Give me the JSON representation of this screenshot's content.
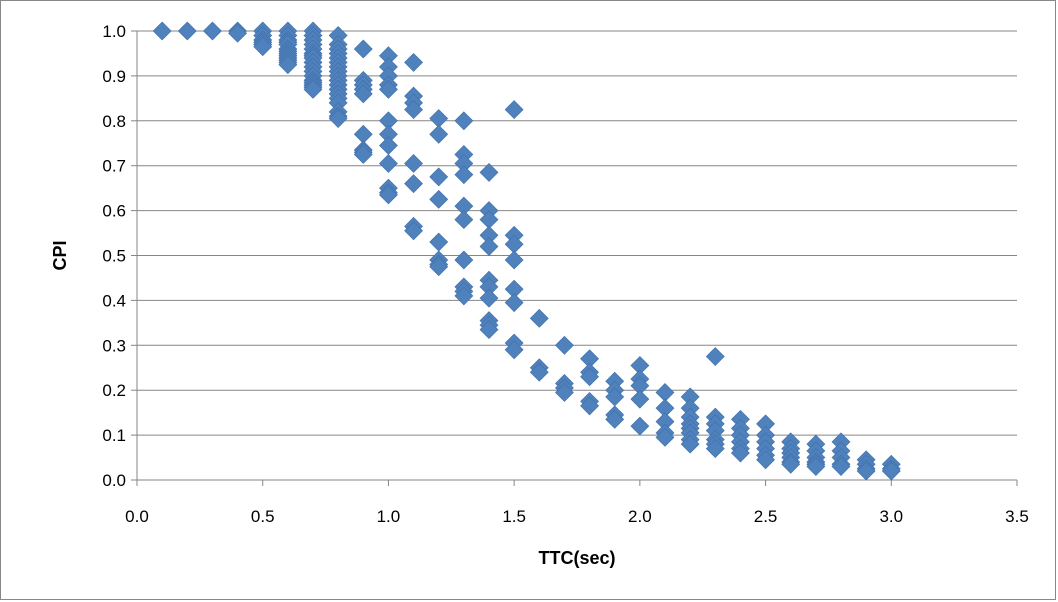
{
  "chart_data": {
    "type": "scatter",
    "title": "",
    "xlabel": "TTC(sec)",
    "ylabel": "CPI",
    "xlim": [
      0,
      3.5
    ],
    "ylim": [
      0,
      1.0
    ],
    "x_ticks": [
      "0.0",
      "0.5",
      "1.0",
      "1.5",
      "2.0",
      "2.5",
      "3.0",
      "3.5"
    ],
    "y_ticks": [
      "0.0",
      "0.1",
      "0.2",
      "0.3",
      "0.4",
      "0.5",
      "0.6",
      "0.7",
      "0.8",
      "0.9",
      "1.0"
    ],
    "grid": "horizontal",
    "legend": "none",
    "marker": "diamond",
    "colors": {
      "marker": "#4F81BD",
      "marker_edge": "#3F6FA8",
      "grid": "#868686",
      "axis": "#868686"
    },
    "series": [
      {
        "x": [
          0.1,
          0.2,
          0.3,
          0.4,
          0.4,
          0.5,
          0.5,
          0.5,
          0.5,
          0.5,
          0.5,
          0.6,
          0.6,
          0.6,
          0.6,
          0.6,
          0.6,
          0.6,
          0.6,
          0.6,
          0.6,
          0.6,
          0.6,
          0.6,
          0.7,
          0.7,
          0.7,
          0.7,
          0.7,
          0.7,
          0.7,
          0.7,
          0.7,
          0.7,
          0.7,
          0.7,
          0.7,
          0.7,
          0.7,
          0.7,
          0.7,
          0.8,
          0.8,
          0.8,
          0.8,
          0.8,
          0.8,
          0.8,
          0.8,
          0.8,
          0.8,
          0.8,
          0.8,
          0.8,
          0.8,
          0.8,
          0.8,
          0.8,
          0.8,
          0.9,
          0.9,
          0.9,
          0.9,
          0.9,
          0.9,
          0.9,
          0.9,
          0.9,
          1.0,
          1.0,
          1.0,
          1.0,
          1.0,
          1.0,
          1.0,
          1.0,
          1.0,
          1.0,
          1.0,
          1.0,
          1.1,
          1.1,
          1.1,
          1.1,
          1.1,
          1.1,
          1.1,
          1.1,
          1.2,
          1.2,
          1.2,
          1.2,
          1.2,
          1.2,
          1.2,
          1.2,
          1.3,
          1.3,
          1.3,
          1.3,
          1.3,
          1.3,
          1.3,
          1.3,
          1.3,
          1.3,
          1.4,
          1.4,
          1.4,
          1.4,
          1.4,
          1.4,
          1.4,
          1.4,
          1.4,
          1.4,
          1.4,
          1.5,
          1.5,
          1.5,
          1.5,
          1.5,
          1.5,
          1.5,
          1.5,
          1.6,
          1.6,
          1.6,
          1.7,
          1.7,
          1.7,
          1.7,
          1.8,
          1.8,
          1.8,
          1.8,
          1.8,
          1.9,
          1.9,
          1.9,
          1.9,
          1.9,
          2.0,
          2.0,
          2.0,
          2.0,
          2.0,
          2.1,
          2.1,
          2.1,
          2.1,
          2.1,
          2.2,
          2.2,
          2.2,
          2.2,
          2.2,
          2.2,
          2.2,
          2.2,
          2.3,
          2.3,
          2.3,
          2.3,
          2.3,
          2.3,
          2.3,
          2.4,
          2.4,
          2.4,
          2.4,
          2.4,
          2.4,
          2.5,
          2.5,
          2.5,
          2.5,
          2.5,
          2.5,
          2.6,
          2.6,
          2.6,
          2.6,
          2.6,
          2.6,
          2.7,
          2.7,
          2.7,
          2.7,
          2.7,
          2.7,
          2.8,
          2.8,
          2.8,
          2.8,
          2.8,
          2.9,
          2.9,
          2.9,
          2.9,
          3.0,
          3.0,
          3.0
        ],
        "y": [
          1.0,
          1.0,
          1.0,
          1.0,
          0.995,
          1.0,
          0.99,
          0.98,
          0.975,
          0.97,
          0.965,
          1.0,
          0.99,
          0.98,
          0.975,
          0.97,
          0.96,
          0.955,
          0.95,
          0.945,
          0.94,
          0.935,
          0.93,
          0.925,
          1.0,
          0.99,
          0.98,
          0.97,
          0.96,
          0.95,
          0.945,
          0.94,
          0.93,
          0.92,
          0.91,
          0.9,
          0.89,
          0.885,
          0.88,
          0.875,
          0.87,
          0.99,
          0.97,
          0.96,
          0.95,
          0.94,
          0.93,
          0.92,
          0.91,
          0.9,
          0.89,
          0.88,
          0.87,
          0.86,
          0.85,
          0.84,
          0.82,
          0.81,
          0.805,
          0.96,
          0.89,
          0.88,
          0.87,
          0.86,
          0.77,
          0.735,
          0.73,
          0.725,
          0.945,
          0.92,
          0.9,
          0.88,
          0.87,
          0.8,
          0.77,
          0.745,
          0.705,
          0.65,
          0.64,
          0.635,
          0.93,
          0.855,
          0.84,
          0.825,
          0.705,
          0.66,
          0.565,
          0.555,
          0.805,
          0.77,
          0.675,
          0.625,
          0.53,
          0.49,
          0.48,
          0.475,
          0.8,
          0.725,
          0.705,
          0.68,
          0.61,
          0.58,
          0.49,
          0.43,
          0.42,
          0.41,
          0.685,
          0.6,
          0.58,
          0.545,
          0.52,
          0.445,
          0.43,
          0.405,
          0.355,
          0.345,
          0.335,
          0.825,
          0.545,
          0.525,
          0.49,
          0.425,
          0.395,
          0.305,
          0.29,
          0.36,
          0.25,
          0.24,
          0.3,
          0.215,
          0.205,
          0.195,
          0.27,
          0.24,
          0.23,
          0.175,
          0.165,
          0.22,
          0.2,
          0.185,
          0.145,
          0.135,
          0.255,
          0.225,
          0.21,
          0.18,
          0.12,
          0.195,
          0.16,
          0.13,
          0.105,
          0.095,
          0.185,
          0.16,
          0.14,
          0.125,
          0.115,
          0.105,
          0.09,
          0.08,
          0.275,
          0.14,
          0.125,
          0.11,
          0.09,
          0.08,
          0.07,
          0.135,
          0.115,
          0.1,
          0.085,
          0.07,
          0.06,
          0.125,
          0.1,
          0.085,
          0.07,
          0.055,
          0.045,
          0.085,
          0.07,
          0.06,
          0.05,
          0.04,
          0.035,
          0.08,
          0.065,
          0.05,
          0.04,
          0.035,
          0.03,
          0.085,
          0.065,
          0.05,
          0.035,
          0.03,
          0.045,
          0.035,
          0.025,
          0.02,
          0.035,
          0.025,
          0.02
        ]
      }
    ]
  }
}
